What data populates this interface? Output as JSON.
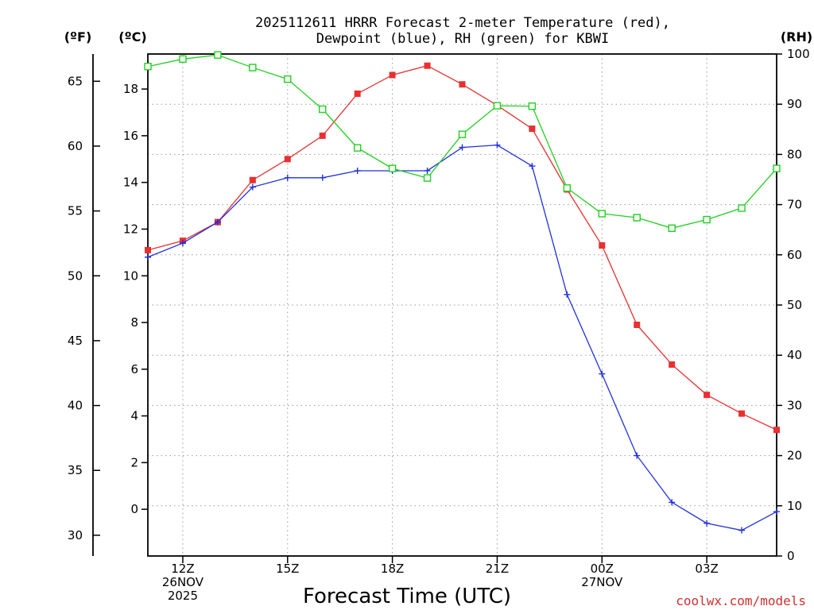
{
  "chart_data": {
    "type": "line",
    "title_line1": "2025112611 HRRR Forecast 2-meter Temperature (red),",
    "title_line2": "Dewpoint (blue), RH (green) for KBWI",
    "xlabel": "Forecast Time (UTC)",
    "credit": "coolwx.com/models",
    "unit_labels": {
      "fahrenheit": "(ºF)",
      "celsius": "(ºC)",
      "rh": "(RH)"
    },
    "x_hours": [
      11,
      12,
      13,
      14,
      15,
      16,
      17,
      18,
      19,
      20,
      21,
      22,
      23,
      24,
      25,
      26,
      27,
      28,
      29
    ],
    "x_ticks": [
      {
        "hour": 12,
        "lines": [
          "12Z",
          "26NOV",
          "2025"
        ]
      },
      {
        "hour": 15,
        "lines": [
          "15Z"
        ]
      },
      {
        "hour": 18,
        "lines": [
          "18Z"
        ]
      },
      {
        "hour": 21,
        "lines": [
          "21Z"
        ]
      },
      {
        "hour": 24,
        "lines": [
          "00Z",
          "27NOV"
        ]
      },
      {
        "hour": 27,
        "lines": [
          "03Z"
        ]
      }
    ],
    "celsius_axis": {
      "min": -2.0,
      "max": 19.5,
      "ticks": [
        "0",
        "2",
        "4",
        "6",
        "8",
        "10",
        "12",
        "14",
        "16",
        "18"
      ]
    },
    "fahrenheit_axis": {
      "ticks": [
        "30",
        "35",
        "40",
        "45",
        "50",
        "55",
        "60",
        "65"
      ]
    },
    "rh_axis": {
      "min": 0,
      "max": 100,
      "ticks": [
        "0",
        "10",
        "20",
        "30",
        "40",
        "50",
        "60",
        "70",
        "80",
        "90",
        "100"
      ]
    },
    "series": [
      {
        "name": "2-meter Temperature",
        "unit": "C",
        "color": "#e83030",
        "marker": "filled-square",
        "values": [
          11.1,
          11.5,
          12.3,
          14.1,
          15.0,
          16.0,
          17.8,
          18.6,
          19.0,
          18.2,
          17.3,
          16.3,
          13.7,
          11.3,
          7.9,
          6.2,
          4.9,
          4.1,
          3.4
        ]
      },
      {
        "name": "Dewpoint",
        "unit": "C",
        "color": "#2030e0",
        "marker": "plus",
        "values": [
          10.8,
          11.4,
          12.3,
          13.8,
          14.2,
          14.2,
          14.5,
          14.5,
          14.5,
          15.5,
          15.6,
          14.7,
          9.2,
          5.8,
          2.3,
          0.3,
          -0.6,
          -0.9,
          -0.1
        ]
      },
      {
        "name": "RH",
        "unit": "%",
        "color": "#20d020",
        "marker": "open-square",
        "values": [
          97.5,
          99.0,
          99.8,
          97.3,
          95.0,
          89.0,
          81.3,
          77.2,
          75.3,
          84.0,
          89.7,
          89.6,
          73.3,
          68.2,
          67.4,
          65.3,
          67.0,
          69.3,
          77.2
        ]
      }
    ]
  }
}
